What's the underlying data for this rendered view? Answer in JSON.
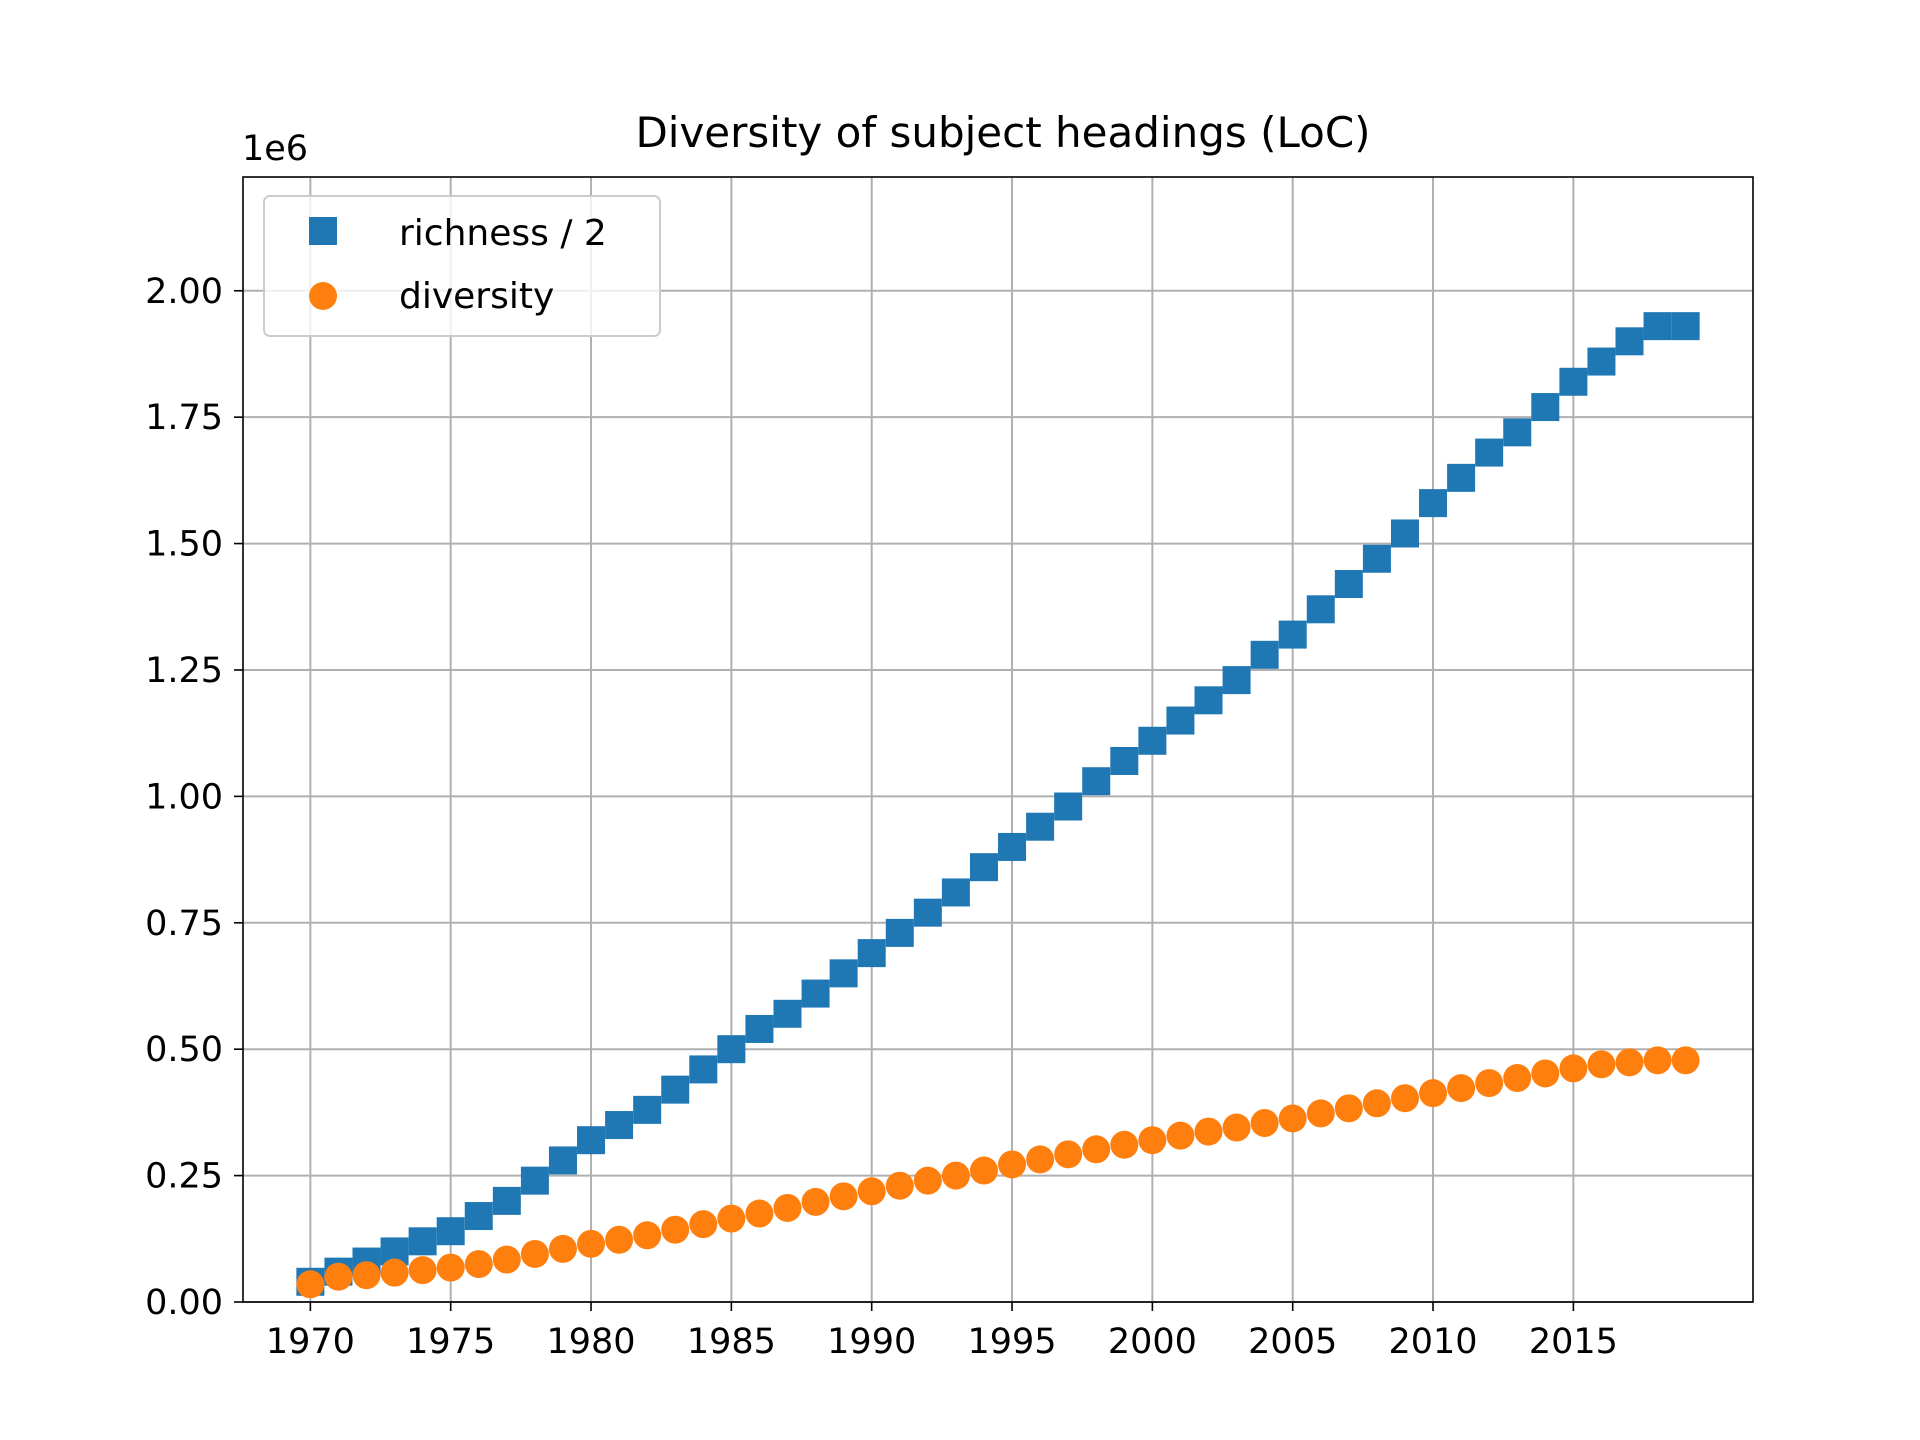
{
  "chart_data": {
    "type": "scatter",
    "title": "Diversity of subject headings (LoC)",
    "xlabel": "",
    "ylabel": "",
    "y_scale_label": "1e6",
    "xlim": [
      1967.6,
      2021.4
    ],
    "ylim": [
      0,
      2.225
    ],
    "grid": true,
    "legend_position": "top-left",
    "x_ticks": [
      1970,
      1975,
      1980,
      1985,
      1990,
      1995,
      2000,
      2005,
      2010,
      2015
    ],
    "x_tick_labels": [
      "1970",
      "1975",
      "1980",
      "1985",
      "1990",
      "1995",
      "2000",
      "2005",
      "2010",
      "2015"
    ],
    "y_ticks": [
      0,
      0.25,
      0.5,
      0.75,
      1.0,
      1.25,
      1.5,
      1.75,
      2.0
    ],
    "y_tick_labels": [
      "0.00",
      "0.25",
      "0.50",
      "0.75",
      "1.00",
      "1.25",
      "1.50",
      "1.75",
      "2.00"
    ],
    "x": [
      1970,
      1971,
      1972,
      1973,
      1974,
      1975,
      1976,
      1977,
      1978,
      1979,
      1980,
      1981,
      1982,
      1983,
      1984,
      1985,
      1986,
      1987,
      1988,
      1989,
      1990,
      1991,
      1992,
      1993,
      1994,
      1995,
      1996,
      1997,
      1998,
      1999,
      2000,
      2001,
      2002,
      2003,
      2004,
      2005,
      2006,
      2007,
      2008,
      2009,
      2010,
      2011,
      2012,
      2013,
      2014,
      2015,
      2016,
      2017,
      2018,
      2019
    ],
    "series": [
      {
        "name": "richness / 2",
        "marker": "square",
        "color": "#1f77b4",
        "values": [
          0.04,
          0.06,
          0.08,
          0.1,
          0.12,
          0.14,
          0.17,
          0.2,
          0.24,
          0.28,
          0.32,
          0.35,
          0.38,
          0.42,
          0.46,
          0.5,
          0.54,
          0.57,
          0.61,
          0.65,
          0.69,
          0.73,
          0.77,
          0.81,
          0.86,
          0.9,
          0.94,
          0.98,
          1.03,
          1.07,
          1.11,
          1.15,
          1.19,
          1.23,
          1.28,
          1.32,
          1.37,
          1.42,
          1.47,
          1.52,
          1.58,
          1.63,
          1.68,
          1.72,
          1.77,
          1.82,
          1.86,
          1.9,
          1.93,
          1.93
        ]
      },
      {
        "name": "diversity",
        "marker": "circle",
        "color": "#ff7f0e",
        "values": [
          0.035,
          0.05,
          0.053,
          0.058,
          0.063,
          0.068,
          0.075,
          0.084,
          0.095,
          0.105,
          0.115,
          0.123,
          0.132,
          0.143,
          0.154,
          0.165,
          0.175,
          0.186,
          0.198,
          0.209,
          0.219,
          0.23,
          0.24,
          0.25,
          0.26,
          0.272,
          0.282,
          0.292,
          0.302,
          0.311,
          0.32,
          0.329,
          0.337,
          0.345,
          0.354,
          0.363,
          0.373,
          0.383,
          0.393,
          0.403,
          0.413,
          0.423,
          0.433,
          0.443,
          0.452,
          0.462,
          0.47,
          0.474,
          0.478,
          0.478
        ]
      }
    ]
  }
}
